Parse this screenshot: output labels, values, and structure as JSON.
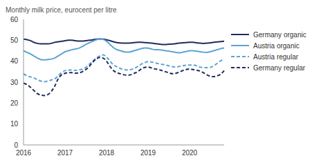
{
  "chart_data": {
    "type": "line",
    "title": "Monthly milk price, eurocent per litre",
    "categories": [
      "2016",
      null,
      null,
      null,
      null,
      null,
      null,
      null,
      null,
      null,
      null,
      null,
      "2017",
      null,
      null,
      null,
      null,
      null,
      null,
      null,
      null,
      null,
      null,
      null,
      "2018",
      null,
      null,
      null,
      null,
      null,
      null,
      null,
      null,
      null,
      null,
      null,
      "2019",
      null,
      null,
      null,
      null,
      null,
      null,
      null,
      null,
      null,
      null,
      null,
      "2020",
      null,
      null,
      null,
      null,
      null,
      null,
      null,
      null,
      null,
      null
    ],
    "series": [
      {
        "name": "Germany organic",
        "color": "#1f2a5c",
        "line_style": "solid",
        "values": [
          50.5,
          50.3,
          49.8,
          49,
          48.5,
          48.3,
          48.3,
          48.3,
          48.5,
          49,
          49.3,
          49.5,
          49.8,
          50,
          50,
          49.8,
          49.6,
          49.6,
          49.8,
          50,
          50.2,
          50.5,
          50.6,
          50.5,
          50.2,
          49.8,
          49.3,
          48.9,
          48.7,
          48.6,
          48.6,
          48.7,
          48.9,
          49,
          49,
          48.9,
          48.8,
          48.6,
          48.4,
          48.2,
          48,
          48,
          48.1,
          48.2,
          48.4,
          48.6,
          48.8,
          48.9,
          49,
          49,
          48.8,
          48.6,
          48.5,
          48.6,
          48.8,
          49,
          49.2,
          49.4,
          49.5
        ]
      },
      {
        "name": "Austria organic",
        "color": "#5ba4d4",
        "line_style": "solid",
        "values": [
          45,
          44.2,
          43.5,
          42.5,
          41.5,
          40.8,
          40.6,
          40.8,
          41,
          41.5,
          42.5,
          43.5,
          44.5,
          45,
          45.5,
          45.8,
          46.2,
          47,
          48,
          48.8,
          49.5,
          50.2,
          50.6,
          50.4,
          49.5,
          48,
          46.5,
          45.5,
          45,
          44.5,
          44.3,
          44.5,
          45,
          45.5,
          46,
          46.3,
          46.2,
          45.8,
          45.5,
          45.5,
          45.3,
          45,
          44.8,
          44.5,
          44.2,
          44,
          44.3,
          44.6,
          45,
          45,
          44.8,
          44.5,
          44.3,
          44.2,
          44.5,
          45,
          45.5,
          46,
          46.3
        ]
      },
      {
        "name": "Austria regular",
        "color": "#5ba4d4",
        "line_style": "dashed",
        "values": [
          34,
          33,
          32.5,
          32,
          31.2,
          30.5,
          30.2,
          30.5,
          31,
          31.5,
          33,
          34.5,
          35.5,
          35.8,
          35.8,
          35.6,
          35.8,
          36.2,
          37,
          38.5,
          40,
          41.5,
          42.5,
          43,
          42,
          40,
          38.2,
          37.3,
          36.5,
          36,
          35.8,
          36,
          36.5,
          37.5,
          38.5,
          39.3,
          39.8,
          39.6,
          39.2,
          38.8,
          38.5,
          38.2,
          37.8,
          37.4,
          37.2,
          37.5,
          37.8,
          38.1,
          38.2,
          38.2,
          37.8,
          37.2,
          37,
          36.9,
          37,
          37.8,
          39,
          40.2,
          41
        ]
      },
      {
        "name": "Germany regular",
        "color": "#1f2a5c",
        "line_style": "dashed",
        "values": [
          29.5,
          28.8,
          27.5,
          26,
          24.5,
          23.8,
          23.6,
          24,
          25.5,
          28,
          31.5,
          33.5,
          34.2,
          34.5,
          34.5,
          34.3,
          34.4,
          35,
          36,
          37.5,
          39.5,
          41,
          41.8,
          41.5,
          40,
          37.5,
          35.5,
          34.5,
          34,
          33.5,
          33.3,
          33.5,
          34.2,
          35,
          36.2,
          37,
          37.2,
          36.8,
          36.3,
          36,
          35.5,
          35,
          34.5,
          34,
          34.2,
          34.8,
          35.5,
          36,
          36.3,
          36,
          35.7,
          35.3,
          34.5,
          33.5,
          32.8,
          32.6,
          33,
          33.8,
          35.5
        ]
      }
    ],
    "ylim": [
      0,
      60
    ],
    "yticks": [
      0,
      10,
      20,
      30,
      40,
      50,
      60
    ],
    "grid": false,
    "legend": "right"
  }
}
